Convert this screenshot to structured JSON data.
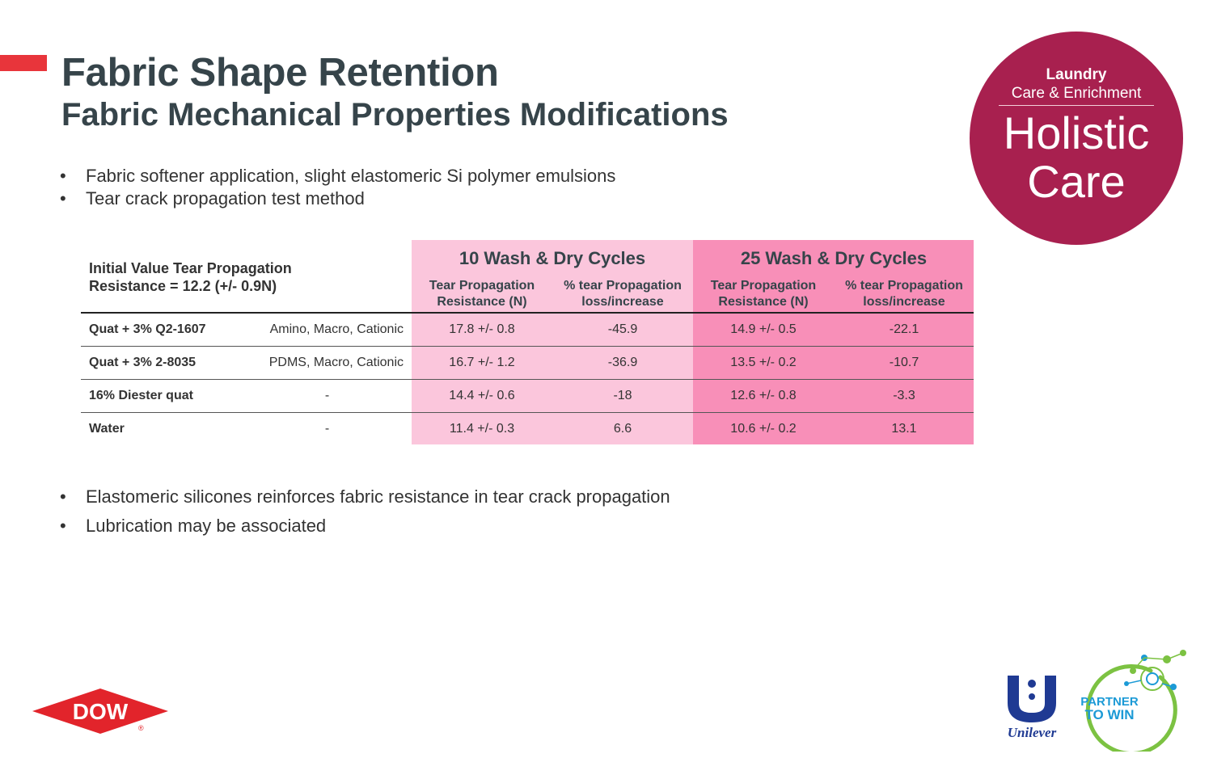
{
  "slide": {
    "title": "Fabric Shape Retention",
    "subtitle": "Fabric Mechanical Properties Modifications",
    "accent_color": "#e8353b",
    "top_bullets": [
      "Fabric softener application, slight elastomeric Si polymer emulsions",
      "Tear crack propagation test method"
    ],
    "bottom_bullets": [
      "Elastomeric silicones reinforces fabric resistance in tear crack propagation",
      "Lubrication may be associated"
    ]
  },
  "badge": {
    "line1": "Laundry",
    "line2": "Care & Enrichment",
    "line3": "Holistic",
    "line4": "Care",
    "color": "#a8204f"
  },
  "table": {
    "initial_value_line1": "Initial Value Tear Propagation",
    "initial_value_line2": "Resistance = 12.2 (+/- 0.9N)",
    "group_10": "10 Wash & Dry Cycles",
    "group_25": "25 Wash & Dry Cycles",
    "col_resistance_line1": "Tear Propagation",
    "col_resistance_line2": "Resistance (N)",
    "col_loss_line1": "% tear Propagation",
    "col_loss_line2": "loss/increase",
    "shade_10_color": "#fbc6dc",
    "shade_25_color": "#f88fb8",
    "rows": [
      {
        "name": "Quat + 3%  Q2-1607",
        "desc": "Amino, Macro, Cationic",
        "r10": "17.8 +/- 0.8",
        "p10": "-45.9",
        "r25": "14.9 +/- 0.5",
        "p25": "-22.1"
      },
      {
        "name": "Quat + 3% 2-8035",
        "desc": "PDMS, Macro, Cationic",
        "r10": "16.7 +/- 1.2",
        "p10": "-36.9",
        "r25": "13.5 +/- 0.2",
        "p25": "-10.7"
      },
      {
        "name": "16% Diester quat",
        "desc": "-",
        "r10": "14.4 +/- 0.6",
        "p10": "-18",
        "r25": "12.6 +/- 0.8",
        "p25": "-3.3"
      },
      {
        "name": "Water",
        "desc": "-",
        "r10": "11.4 +/- 0.3",
        "p10": "6.6",
        "r25": "10.6 +/- 0.2",
        "p25": "13.1"
      }
    ]
  },
  "logos": {
    "dow_text": "DOW",
    "dow_mark": "®",
    "dow_color": "#e2242b",
    "unilever_text": "Unilever",
    "unilever_color": "#1f3a93",
    "partner_line1": "PARTNER",
    "partner_line2": "TO WIN",
    "partner_color": "#1c9ad6",
    "partner_ring_color": "#7cc242"
  }
}
